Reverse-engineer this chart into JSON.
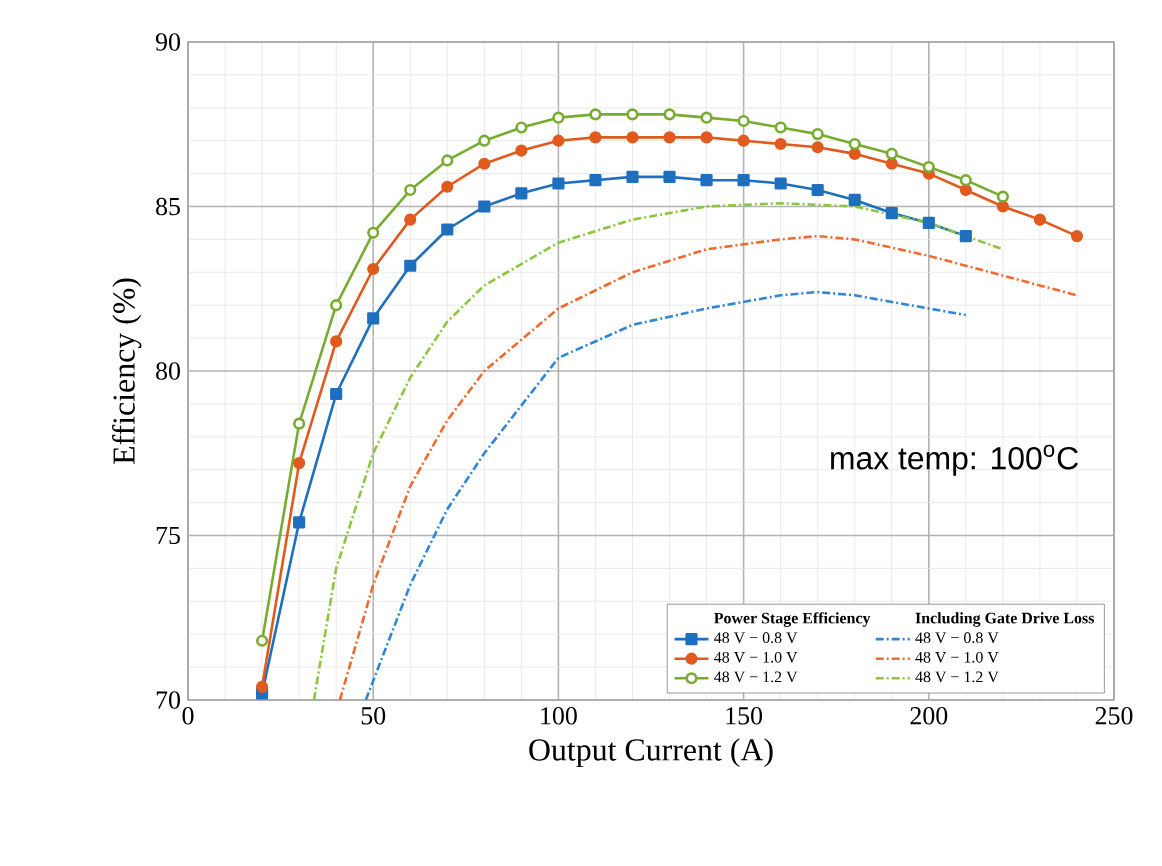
{
  "chart_data": {
    "type": "line",
    "xlabel": "Output Current (A)",
    "ylabel": "Efficiency (%)",
    "xlim": [
      0,
      250
    ],
    "ylim": [
      70,
      90
    ],
    "xticks": [
      0,
      50,
      100,
      150,
      200,
      250
    ],
    "yticks": [
      70,
      75,
      80,
      85,
      90
    ],
    "grid": true,
    "legend": "bottom right",
    "annotations": [
      "Power Stage Efficiency",
      "Including Gate Drive Loss",
      "max temp: 100$^{o}$C"
    ],
    "series": [
      {
        "name": "48 V − 0.8 V",
        "color": "#1f6fbf",
        "marker": "square",
        "line_style": "solid",
        "x": [
          20,
          30,
          40,
          50,
          60,
          70,
          80,
          90,
          100,
          110,
          120,
          130,
          140,
          150,
          160,
          170,
          180,
          190,
          200,
          210
        ],
        "values": [
          70.2,
          75.4,
          79.3,
          81.6,
          83.2,
          84.3,
          85.0,
          85.4,
          85.7,
          85.8,
          85.9,
          85.9,
          85.8,
          85.8,
          85.7,
          85.5,
          85.2,
          84.8,
          84.5,
          84.1
        ]
      },
      {
        "name": "48 V − 1.0 V",
        "color": "#e05a1e",
        "marker": "circle",
        "line_style": "solid",
        "x": [
          20,
          30,
          40,
          50,
          60,
          70,
          80,
          90,
          100,
          110,
          120,
          130,
          140,
          150,
          160,
          170,
          180,
          190,
          200,
          210,
          220,
          230,
          240
        ],
        "values": [
          70.4,
          77.2,
          80.9,
          83.1,
          84.6,
          85.6,
          86.3,
          86.7,
          87.0,
          87.1,
          87.1,
          87.1,
          87.1,
          87.0,
          86.9,
          86.8,
          86.6,
          86.3,
          86.0,
          85.5,
          85.0,
          84.6,
          84.1
        ]
      },
      {
        "name": "48 V − 1.2 V",
        "color": "#77ac30",
        "marker": "circle",
        "line_style": "solid",
        "x": [
          20,
          30,
          40,
          50,
          60,
          70,
          80,
          90,
          100,
          110,
          120,
          130,
          140,
          150,
          160,
          170,
          180,
          190,
          200,
          210,
          220
        ],
        "values": [
          71.8,
          78.4,
          82.0,
          84.2,
          85.5,
          86.4,
          87.0,
          87.4,
          87.7,
          87.8,
          87.8,
          87.8,
          87.7,
          87.6,
          87.4,
          87.2,
          86.9,
          86.6,
          86.2,
          85.8,
          85.3
        ]
      },
      {
        "name": "48 V − 0.8 V",
        "color": "#2f86d6",
        "marker": "none",
        "line_style": "dashed",
        "x": [
          48,
          60,
          70,
          80,
          100,
          120,
          140,
          160,
          170,
          180,
          200,
          210
        ],
        "values": [
          70,
          73.5,
          75.8,
          77.5,
          80.4,
          81.4,
          81.9,
          82.3,
          82.4,
          82.3,
          81.9,
          81.7
        ]
      },
      {
        "name": "48 V − 1.0 V",
        "color": "#f06a30",
        "marker": "none",
        "line_style": "dashed",
        "x": [
          41,
          50,
          60,
          70,
          80,
          100,
          120,
          140,
          160,
          170,
          180,
          200,
          220,
          240
        ],
        "values": [
          70,
          73.5,
          76.5,
          78.5,
          80.0,
          81.9,
          83.0,
          83.7,
          84.0,
          84.1,
          84.0,
          83.5,
          82.9,
          82.3
        ]
      },
      {
        "name": "48 V − 1.2 V",
        "color": "#8cc63f",
        "marker": "none",
        "line_style": "dashed",
        "x": [
          34,
          40,
          50,
          60,
          70,
          80,
          100,
          120,
          140,
          160,
          180,
          200,
          220
        ],
        "values": [
          70,
          74.0,
          77.5,
          79.8,
          81.5,
          82.6,
          83.9,
          84.6,
          85.0,
          85.1,
          85.0,
          84.5,
          83.7
        ]
      }
    ]
  }
}
